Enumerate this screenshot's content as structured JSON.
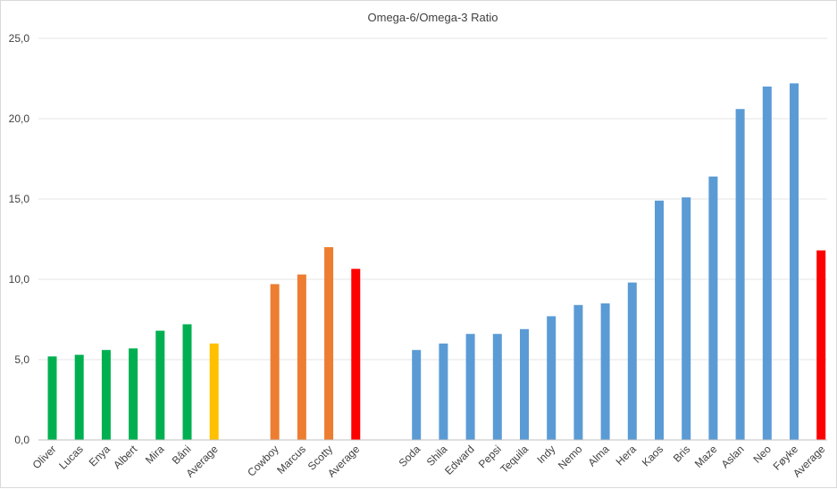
{
  "chart_data": {
    "type": "bar",
    "title": "Omega-6/Omega-3 Ratio",
    "xlabel": "",
    "ylabel": "",
    "ylim": [
      0,
      25
    ],
    "ytick_labels": [
      "0,0",
      "5,0",
      "10,0",
      "15,0",
      "20,0",
      "25,0"
    ],
    "grid": true,
    "legend": "none",
    "categories": [
      "Oliver",
      "Lucas",
      "Enya",
      "Albert",
      "Mira",
      "Bâni",
      "Average",
      "Cowboy",
      "Marcus",
      "Scotty",
      "Average",
      "Soda",
      "Shila",
      "Edward",
      "Pepsi",
      "Tequila",
      "Indy",
      "Nemo",
      "Alma",
      "Hera",
      "Kaos",
      "Bris",
      "Maze",
      "Aslan",
      "Neo",
      "Føyke",
      "Average"
    ],
    "values": [
      5.2,
      5.3,
      5.6,
      5.7,
      6.8,
      7.2,
      6.0,
      9.7,
      10.3,
      12.0,
      10.65,
      5.6,
      6.0,
      6.6,
      6.6,
      6.9,
      7.7,
      8.4,
      8.5,
      9.8,
      14.9,
      15.1,
      16.4,
      20.6,
      22.0,
      22.2,
      11.8
    ],
    "groups": [
      0,
      0,
      0,
      0,
      0,
      0,
      0,
      1,
      1,
      1,
      1,
      2,
      2,
      2,
      2,
      2,
      2,
      2,
      2,
      2,
      2,
      2,
      2,
      2,
      2,
      2,
      2
    ],
    "colors": [
      "#00b050",
      "#00b050",
      "#00b050",
      "#00b050",
      "#00b050",
      "#00b050",
      "#ffc000",
      "#ed7d31",
      "#ed7d31",
      "#ed7d31",
      "#ff0000",
      "#5b9bd5",
      "#5b9bd5",
      "#5b9bd5",
      "#5b9bd5",
      "#5b9bd5",
      "#5b9bd5",
      "#5b9bd5",
      "#5b9bd5",
      "#5b9bd5",
      "#5b9bd5",
      "#5b9bd5",
      "#5b9bd5",
      "#5b9bd5",
      "#5b9bd5",
      "#5b9bd5",
      "#ff0000"
    ],
    "palette": {
      "group_1": "#00b050",
      "group_1_average": "#ffc000",
      "group_2": "#ed7d31",
      "group_2_average": "#ff0000",
      "group_3": "#5b9bd5",
      "group_3_average": "#ff0000",
      "gridline": "#e6e6e6",
      "axis": "#bfbfbf",
      "text": "#404040"
    }
  }
}
